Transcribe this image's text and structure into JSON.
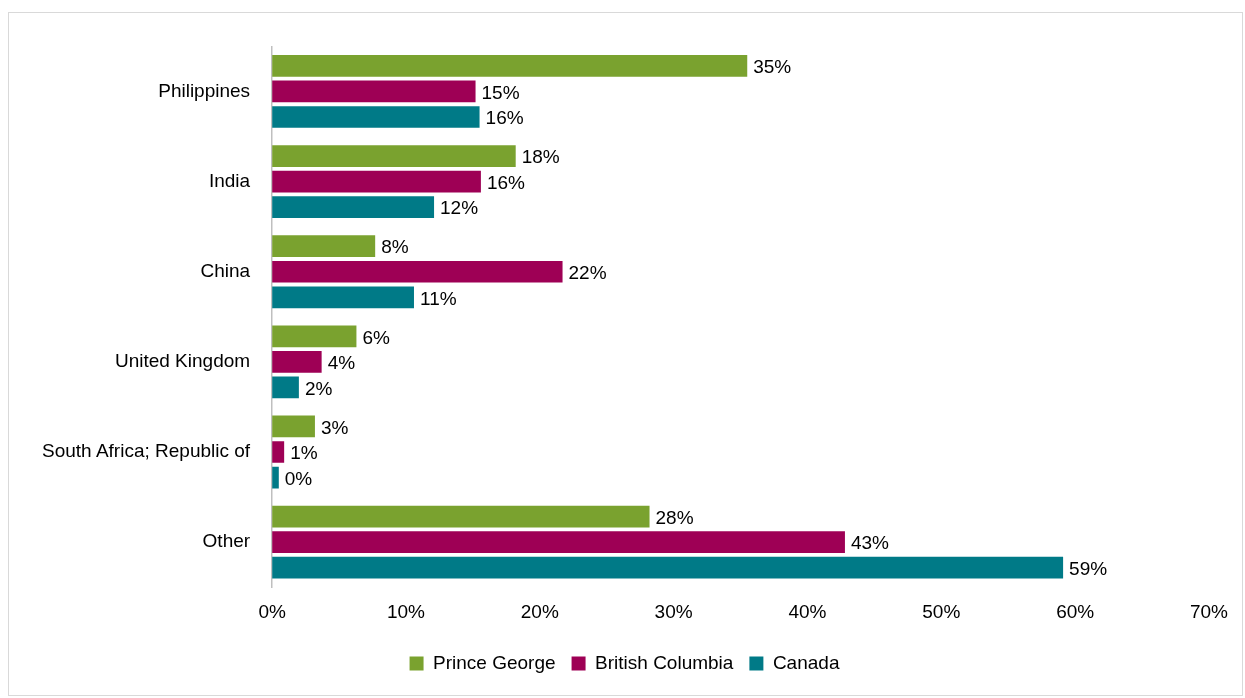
{
  "chart_data": {
    "type": "bar",
    "orientation": "horizontal",
    "categories": [
      "Philippines",
      "India",
      "China",
      "United Kingdom",
      "South Africa; Republic of",
      "Other"
    ],
    "series": [
      {
        "name": "Prince George",
        "color": "#7aa22f",
        "values": [
          35.5,
          18.2,
          7.7,
          6.3,
          3.2,
          28.2
        ],
        "value_labels": [
          "35%",
          "18%",
          "8%",
          "6%",
          "3%",
          "28%"
        ]
      },
      {
        "name": "British Columbia",
        "color": "#9e0055",
        "values": [
          15.2,
          15.6,
          21.7,
          3.7,
          0.9,
          42.8
        ],
        "value_labels": [
          "15%",
          "16%",
          "22%",
          "4%",
          "1%",
          "43%"
        ]
      },
      {
        "name": "Canada",
        "color": "#007a87",
        "values": [
          15.5,
          12.1,
          10.6,
          2.0,
          0.5,
          59.1
        ],
        "value_labels": [
          "16%",
          "12%",
          "11%",
          "2%",
          "0%",
          "59%"
        ]
      }
    ],
    "xlim": [
      0,
      70
    ],
    "xticks": [
      {
        "value": 0,
        "label": "0%"
      },
      {
        "value": 10,
        "label": "10%"
      },
      {
        "value": 20,
        "label": "20%"
      },
      {
        "value": 30,
        "label": "30%"
      },
      {
        "value": 40,
        "label": "40%"
      },
      {
        "value": 50,
        "label": "50%"
      },
      {
        "value": 60,
        "label": "60%"
      },
      {
        "value": 70,
        "label": "70%"
      }
    ],
    "grid": false,
    "legend": "bottom"
  }
}
